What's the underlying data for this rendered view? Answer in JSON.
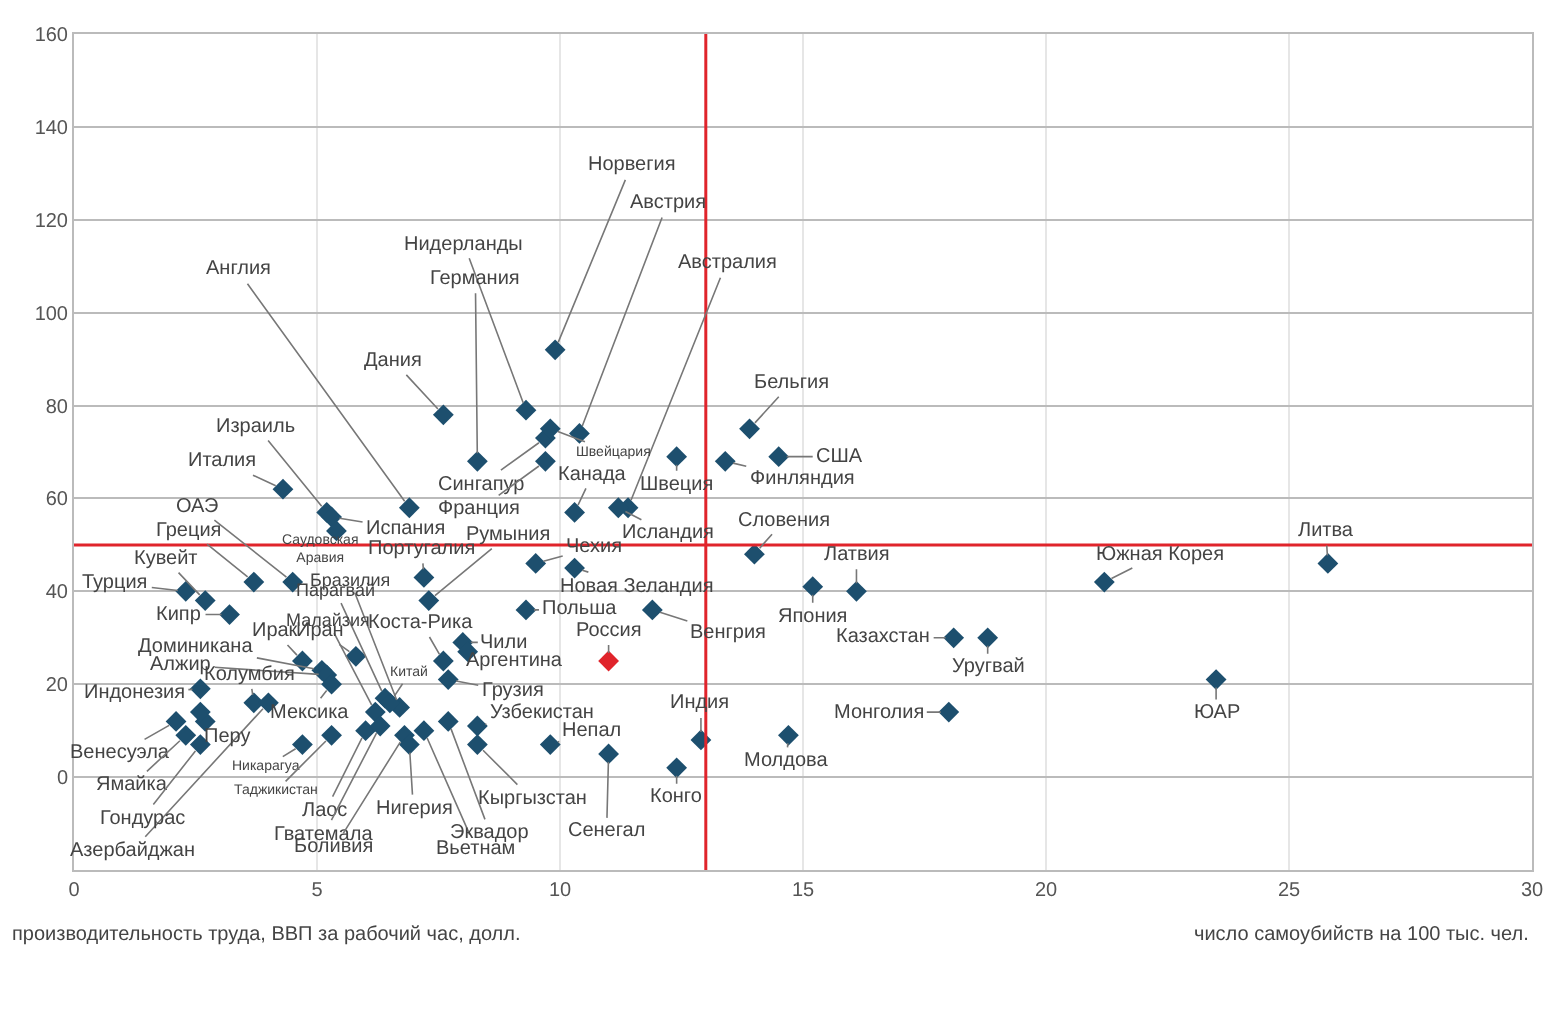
{
  "chart_data": {
    "type": "scatter",
    "xlabel": "число самоубийств на 100 тыс. чел.",
    "ylabel": "производительность труда, ВВП за рабочий час, долл.",
    "xlim": [
      0,
      30
    ],
    "xticks": [
      0,
      5,
      10,
      15,
      20,
      25,
      30
    ],
    "ylim": [
      -20,
      160
    ],
    "yticks": [
      0,
      20,
      40,
      60,
      80,
      100,
      120,
      140,
      160
    ],
    "grid": true,
    "marker": "diamond",
    "ref_lines": [
      {
        "axis": "x",
        "value": 13,
        "color": "#e0242b"
      },
      {
        "axis": "y",
        "value": 50,
        "color": "#e0242b"
      }
    ],
    "x": [
      9.9,
      10.4,
      11.4,
      9.3,
      8.3,
      6.9,
      7.6,
      5.2,
      4.3,
      5.3,
      5.4,
      9.7,
      9.7,
      9.8,
      10.3,
      11.2,
      12.4,
      13.9,
      13.4,
      14.5,
      14.0,
      7.3,
      7.2,
      9.5,
      10.3,
      4.5,
      3.7,
      2.7,
      2.3,
      6.7,
      6.4,
      6.2,
      6.5,
      5.8,
      4.7,
      3.2,
      5.1,
      5.2,
      3.7,
      4.0,
      5.3,
      2.6,
      2.7,
      2.1,
      2.3,
      2.6,
      4.7,
      5.3,
      6.0,
      6.3,
      6.8,
      6.9,
      7.2,
      7.7,
      7.6,
      8.0,
      8.1,
      7.7,
      8.3,
      8.3,
      9.8,
      11.0,
      12.4,
      12.9,
      14.7,
      9.3,
      11.9,
      11.0,
      15.2,
      16.1,
      18.1,
      18.8,
      18.0,
      21.2,
      25.8,
      23.5,
      2.6
    ],
    "values": [
      92,
      74,
      58,
      79,
      68,
      58,
      78,
      57,
      62,
      56,
      53,
      73,
      68,
      75,
      57,
      58,
      69,
      75,
      68,
      69,
      48,
      38,
      43,
      46,
      45,
      42,
      42,
      38,
      40,
      15,
      17,
      14,
      16,
      26,
      25,
      35,
      23,
      22,
      16,
      16,
      20,
      19,
      12,
      12,
      9,
      7,
      7,
      9,
      10,
      11,
      9,
      7,
      10,
      12,
      25,
      29,
      27,
      21,
      11,
      7,
      7,
      5,
      2,
      8,
      9,
      36,
      36,
      25,
      41,
      40,
      30,
      30,
      14,
      42,
      46,
      21,
      14
    ],
    "colors": [
      "#1d4f6e",
      "#1d4f6e",
      "#1d4f6e",
      "#1d4f6e",
      "#1d4f6e",
      "#1d4f6e",
      "#1d4f6e",
      "#1d4f6e",
      "#1d4f6e",
      "#1d4f6e",
      "#1d4f6e",
      "#1d4f6e",
      "#1d4f6e",
      "#1d4f6e",
      "#1d4f6e",
      "#1d4f6e",
      "#1d4f6e",
      "#1d4f6e",
      "#1d4f6e",
      "#1d4f6e",
      "#1d4f6e",
      "#1d4f6e",
      "#1d4f6e",
      "#1d4f6e",
      "#1d4f6e",
      "#1d4f6e",
      "#1d4f6e",
      "#1d4f6e",
      "#1d4f6e",
      "#1d4f6e",
      "#1d4f6e",
      "#1d4f6e",
      "#1d4f6e",
      "#1d4f6e",
      "#1d4f6e",
      "#1d4f6e",
      "#1d4f6e",
      "#1d4f6e",
      "#1d4f6e",
      "#1d4f6e",
      "#1d4f6e",
      "#1d4f6e",
      "#1d4f6e",
      "#1d4f6e",
      "#1d4f6e",
      "#1d4f6e",
      "#1d4f6e",
      "#1d4f6e",
      "#1d4f6e",
      "#1d4f6e",
      "#1d4f6e",
      "#1d4f6e",
      "#1d4f6e",
      "#1d4f6e",
      "#1d4f6e",
      "#1d4f6e",
      "#1d4f6e",
      "#1d4f6e",
      "#1d4f6e",
      "#1d4f6e",
      "#1d4f6e",
      "#1d4f6e",
      "#1d4f6e",
      "#1d4f6e",
      "#1d4f6e",
      "#1d4f6e",
      "#1d4f6e",
      "#e0242b",
      "#1d4f6e",
      "#1d4f6e",
      "#1d4f6e",
      "#1d4f6e",
      "#1d4f6e",
      "#1d4f6e",
      "#1d4f6e",
      "#1d4f6e",
      "#1d4f6e"
    ],
    "annotations": [
      {
        "text": "Норвегия",
        "x": 9.9,
        "y": 92
      },
      {
        "text": "Австрия",
        "x": 10.4,
        "y": 74
      },
      {
        "text": "Австралия",
        "x": 11.4,
        "y": 58
      },
      {
        "text": "Нидерланды",
        "x": 9.3,
        "y": 79
      },
      {
        "text": "Германия",
        "x": 8.3,
        "y": 68
      },
      {
        "text": "Англия",
        "x": 6.9,
        "y": 58
      },
      {
        "text": "Дания",
        "x": 7.6,
        "y": 78
      },
      {
        "text": "Израиль",
        "x": 5.2,
        "y": 57
      },
      {
        "text": "Италия",
        "x": 4.3,
        "y": 62
      },
      {
        "text": "Испания",
        "x": 5.3,
        "y": 56
      },
      {
        "text": "Саудовская Аравия",
        "x": 5.4,
        "y": 53
      },
      {
        "text": "Сингапур",
        "x": 9.7,
        "y": 73
      },
      {
        "text": "Франция",
        "x": 9.7,
        "y": 68
      },
      {
        "text": "Швейцария",
        "x": 9.8,
        "y": 75
      },
      {
        "text": "Канада",
        "x": 10.3,
        "y": 57
      },
      {
        "text": "Исландия",
        "x": 11.2,
        "y": 58
      },
      {
        "text": "Швеция",
        "x": 12.4,
        "y": 69
      },
      {
        "text": "Бельгия",
        "x": 13.9,
        "y": 75
      },
      {
        "text": "Финляндия",
        "x": 13.4,
        "y": 68
      },
      {
        "text": "США",
        "x": 14.5,
        "y": 69
      },
      {
        "text": "Словения",
        "x": 14.0,
        "y": 48
      },
      {
        "text": "Румыния",
        "x": 7.3,
        "y": 38
      },
      {
        "text": "Португалия",
        "x": 7.2,
        "y": 43
      },
      {
        "text": "Чехия",
        "x": 9.5,
        "y": 46
      },
      {
        "text": "Новая Зеландия",
        "x": 10.3,
        "y": 45
      },
      {
        "text": "ОАЭ",
        "x": 4.5,
        "y": 42
      },
      {
        "text": "Греция",
        "x": 3.7,
        "y": 42
      },
      {
        "text": "Кувейт",
        "x": 2.7,
        "y": 38
      },
      {
        "text": "Турция",
        "x": 2.3,
        "y": 40
      },
      {
        "text": "Бразилия",
        "x": 6.7,
        "y": 15
      },
      {
        "text": "Парагвай",
        "x": 6.4,
        "y": 17
      },
      {
        "text": "Малайзия",
        "x": 6.2,
        "y": 14
      },
      {
        "text": "Китай",
        "x": 6.5,
        "y": 16
      },
      {
        "text": "Иран",
        "x": 5.8,
        "y": 26
      },
      {
        "text": "Ирак",
        "x": 4.7,
        "y": 25
      },
      {
        "text": "Кипр",
        "x": 3.2,
        "y": 35
      },
      {
        "text": "Доминикана",
        "x": 5.1,
        "y": 23
      },
      {
        "text": "Алжир",
        "x": 5.2,
        "y": 22
      },
      {
        "text": "Колумбия",
        "x": 3.7,
        "y": 16
      },
      {
        "text": "Азербайджан",
        "x": 4.0,
        "y": 16
      },
      {
        "text": "Мексика",
        "x": 5.3,
        "y": 20
      },
      {
        "text": "Индонезия",
        "x": 2.6,
        "y": 19
      },
      {
        "text": "Перу",
        "x": 2.7,
        "y": 12
      },
      {
        "text": "Венесуэла",
        "x": 2.1,
        "y": 12
      },
      {
        "text": "Ямайка",
        "x": 2.3,
        "y": 9
      },
      {
        "text": "Гондурас",
        "x": 2.6,
        "y": 7
      },
      {
        "text": "Никарагуа",
        "x": 4.7,
        "y": 7
      },
      {
        "text": "Таджикистан",
        "x": 5.3,
        "y": 9
      },
      {
        "text": "Лаос",
        "x": 6.0,
        "y": 10
      },
      {
        "text": "Гватемала",
        "x": 6.3,
        "y": 11
      },
      {
        "text": "Боливия",
        "x": 6.8,
        "y": 9
      },
      {
        "text": "Нигерия",
        "x": 6.9,
        "y": 7
      },
      {
        "text": "Вьетнам",
        "x": 7.2,
        "y": 10
      },
      {
        "text": "Эквадор",
        "x": 7.7,
        "y": 12
      },
      {
        "text": "Коста-Рика",
        "x": 7.6,
        "y": 25
      },
      {
        "text": "Чили",
        "x": 8.0,
        "y": 29
      },
      {
        "text": "Аргентина",
        "x": 8.1,
        "y": 27
      },
      {
        "text": "Грузия",
        "x": 7.7,
        "y": 21
      },
      {
        "text": "Узбекистан",
        "x": 8.3,
        "y": 11
      },
      {
        "text": "Кыргызстан",
        "x": 8.3,
        "y": 7
      },
      {
        "text": "Непал",
        "x": 9.8,
        "y": 7
      },
      {
        "text": "Сенегал",
        "x": 11.0,
        "y": 5
      },
      {
        "text": "Конго",
        "x": 12.4,
        "y": 2
      },
      {
        "text": "Индия",
        "x": 12.9,
        "y": 8
      },
      {
        "text": "Молдова",
        "x": 14.7,
        "y": 9
      },
      {
        "text": "Польша",
        "x": 9.3,
        "y": 36
      },
      {
        "text": "Венгрия",
        "x": 11.9,
        "y": 36
      },
      {
        "text": "Россия",
        "x": 11.0,
        "y": 25
      },
      {
        "text": "Япония",
        "x": 15.2,
        "y": 41
      },
      {
        "text": "Латвия",
        "x": 16.1,
        "y": 40
      },
      {
        "text": "Казахстан",
        "x": 18.1,
        "y": 30
      },
      {
        "text": "Уругвай",
        "x": 18.8,
        "y": 30
      },
      {
        "text": "Монголия",
        "x": 18.0,
        "y": 14
      },
      {
        "text": "Южная Корея",
        "x": 21.2,
        "y": 42
      },
      {
        "text": "Литва",
        "x": 25.8,
        "y": 46
      },
      {
        "text": "ЮАР",
        "x": 23.5,
        "y": 21
      }
    ]
  }
}
